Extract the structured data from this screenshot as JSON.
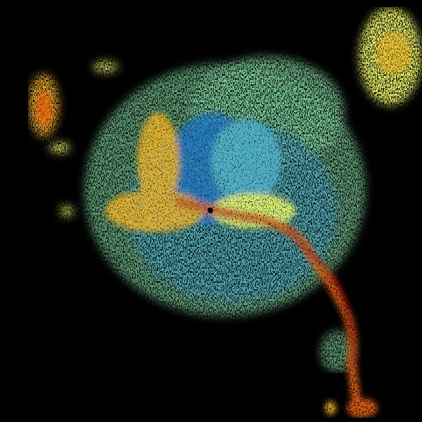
{
  "image": {
    "kind": "radar-reflectivity",
    "colors": {
      "background": "#000000",
      "weak": "#7fd6a0",
      "light": "#4fb0c8",
      "blue": "#1f6fb8",
      "moderate": "#e8f060",
      "strong": "#f0b020",
      "heavy": "#e06010",
      "intense": "#c02010",
      "site": "#000000"
    }
  }
}
